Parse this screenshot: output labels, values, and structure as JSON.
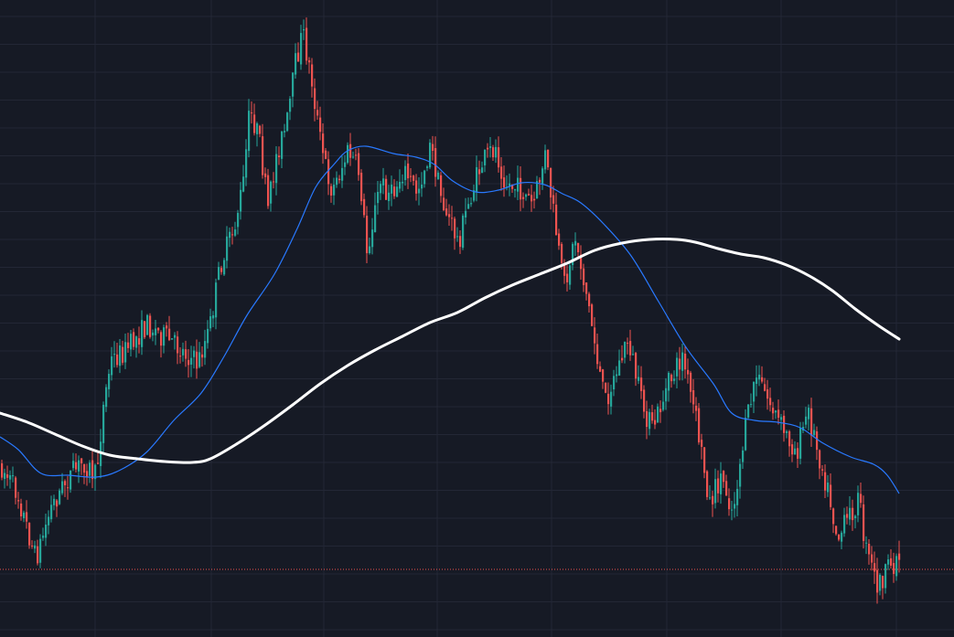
{
  "colors": {
    "background": "#161a25",
    "grid": "#232735",
    "up": "#26a69a",
    "down": "#ef5350",
    "ma_fast": "#2979ff",
    "ma_slow": "#ffffff",
    "price_line": "#ef5350"
  },
  "chart_data": {
    "type": "candlestick",
    "ylim": [
      0,
      697
    ],
    "grid": true,
    "series": [
      {
        "kind": "candles",
        "keyframes": [
          [
            0,
            510
          ],
          [
            18,
            540
          ],
          [
            38,
            612
          ],
          [
            55,
            555
          ],
          [
            72,
            525
          ],
          [
            90,
            505
          ],
          [
            104,
            522
          ],
          [
            112,
            445
          ],
          [
            120,
            395
          ],
          [
            140,
            380
          ],
          [
            160,
            355
          ],
          [
            178,
            368
          ],
          [
            200,
            385
          ],
          [
            215,
            398
          ],
          [
            228,
            360
          ],
          [
            240,
            290
          ],
          [
            255,
            250
          ],
          [
            265,
            200
          ],
          [
            272,
            120
          ],
          [
            282,
            150
          ],
          [
            292,
            230
          ],
          [
            302,
            165
          ],
          [
            312,
            140
          ],
          [
            322,
            70
          ],
          [
            330,
            35
          ],
          [
            340,
            90
          ],
          [
            350,
            160
          ],
          [
            362,
            210
          ],
          [
            380,
            165
          ],
          [
            392,
            190
          ],
          [
            400,
            275
          ],
          [
            415,
            200
          ],
          [
            428,
            215
          ],
          [
            440,
            185
          ],
          [
            455,
            210
          ],
          [
            470,
            160
          ],
          [
            482,
            220
          ],
          [
            500,
            265
          ],
          [
            512,
            220
          ],
          [
            525,
            180
          ],
          [
            540,
            160
          ],
          [
            552,
            200
          ],
          [
            570,
            210
          ],
          [
            582,
            225
          ],
          [
            595,
            170
          ],
          [
            605,
            240
          ],
          [
            615,
            315
          ],
          [
            628,
            260
          ],
          [
            640,
            320
          ],
          [
            650,
            380
          ],
          [
            660,
            440
          ],
          [
            672,
            410
          ],
          [
            686,
            370
          ],
          [
            700,
            440
          ],
          [
            712,
            470
          ],
          [
            730,
            420
          ],
          [
            745,
            390
          ],
          [
            760,
            460
          ],
          [
            775,
            550
          ],
          [
            788,
            520
          ],
          [
            800,
            560
          ],
          [
            812,
            480
          ],
          [
            825,
            410
          ],
          [
            840,
            440
          ],
          [
            855,
            470
          ],
          [
            870,
            495
          ],
          [
            882,
            450
          ],
          [
            895,
            500
          ],
          [
            905,
            540
          ],
          [
            915,
            590
          ],
          [
            930,
            560
          ],
          [
            938,
            545
          ],
          [
            945,
            600
          ],
          [
            958,
            640
          ],
          [
            970,
            625
          ],
          [
            983,
            605
          ]
        ]
      },
      {
        "kind": "line",
        "name": "",
        "points": [
          [
            0,
            478
          ],
          [
            20,
            492
          ],
          [
            45,
            518
          ],
          [
            75,
            520
          ],
          [
            105,
            522
          ],
          [
            130,
            515
          ],
          [
            160,
            495
          ],
          [
            190,
            460
          ],
          [
            220,
            430
          ],
          [
            245,
            390
          ],
          [
            270,
            345
          ],
          [
            300,
            300
          ],
          [
            325,
            250
          ],
          [
            345,
            205
          ],
          [
            365,
            180
          ],
          [
            380,
            165
          ],
          [
            400,
            160
          ],
          [
            430,
            168
          ],
          [
            455,
            172
          ],
          [
            475,
            180
          ],
          [
            495,
            198
          ],
          [
            520,
            210
          ],
          [
            545,
            208
          ],
          [
            570,
            200
          ],
          [
            595,
            202
          ],
          [
            615,
            212
          ],
          [
            635,
            222
          ],
          [
            660,
            245
          ],
          [
            690,
            280
          ],
          [
            720,
            330
          ],
          [
            750,
            380
          ],
          [
            780,
            420
          ],
          [
            800,
            452
          ],
          [
            825,
            460
          ],
          [
            850,
            462
          ],
          [
            875,
            468
          ],
          [
            900,
            485
          ],
          [
            930,
            500
          ],
          [
            955,
            508
          ],
          [
            970,
            520
          ],
          [
            983,
            540
          ]
        ]
      },
      {
        "kind": "line",
        "name": "",
        "points": [
          [
            0,
            452
          ],
          [
            30,
            462
          ],
          [
            60,
            475
          ],
          [
            90,
            488
          ],
          [
            120,
            498
          ],
          [
            150,
            502
          ],
          [
            180,
            505
          ],
          [
            210,
            506
          ],
          [
            230,
            502
          ],
          [
            260,
            485
          ],
          [
            290,
            465
          ],
          [
            320,
            443
          ],
          [
            350,
            420
          ],
          [
            380,
            400
          ],
          [
            410,
            383
          ],
          [
            440,
            368
          ],
          [
            470,
            353
          ],
          [
            500,
            342
          ],
          [
            530,
            326
          ],
          [
            560,
            312
          ],
          [
            590,
            300
          ],
          [
            620,
            288
          ],
          [
            650,
            274
          ],
          [
            680,
            266
          ],
          [
            710,
            262
          ],
          [
            740,
            262
          ],
          [
            760,
            265
          ],
          [
            785,
            272
          ],
          [
            810,
            278
          ],
          [
            835,
            282
          ],
          [
            860,
            290
          ],
          [
            885,
            302
          ],
          [
            910,
            318
          ],
          [
            935,
            338
          ],
          [
            960,
            356
          ],
          [
            983,
            371
          ]
        ]
      }
    ],
    "price_line": 623
  }
}
